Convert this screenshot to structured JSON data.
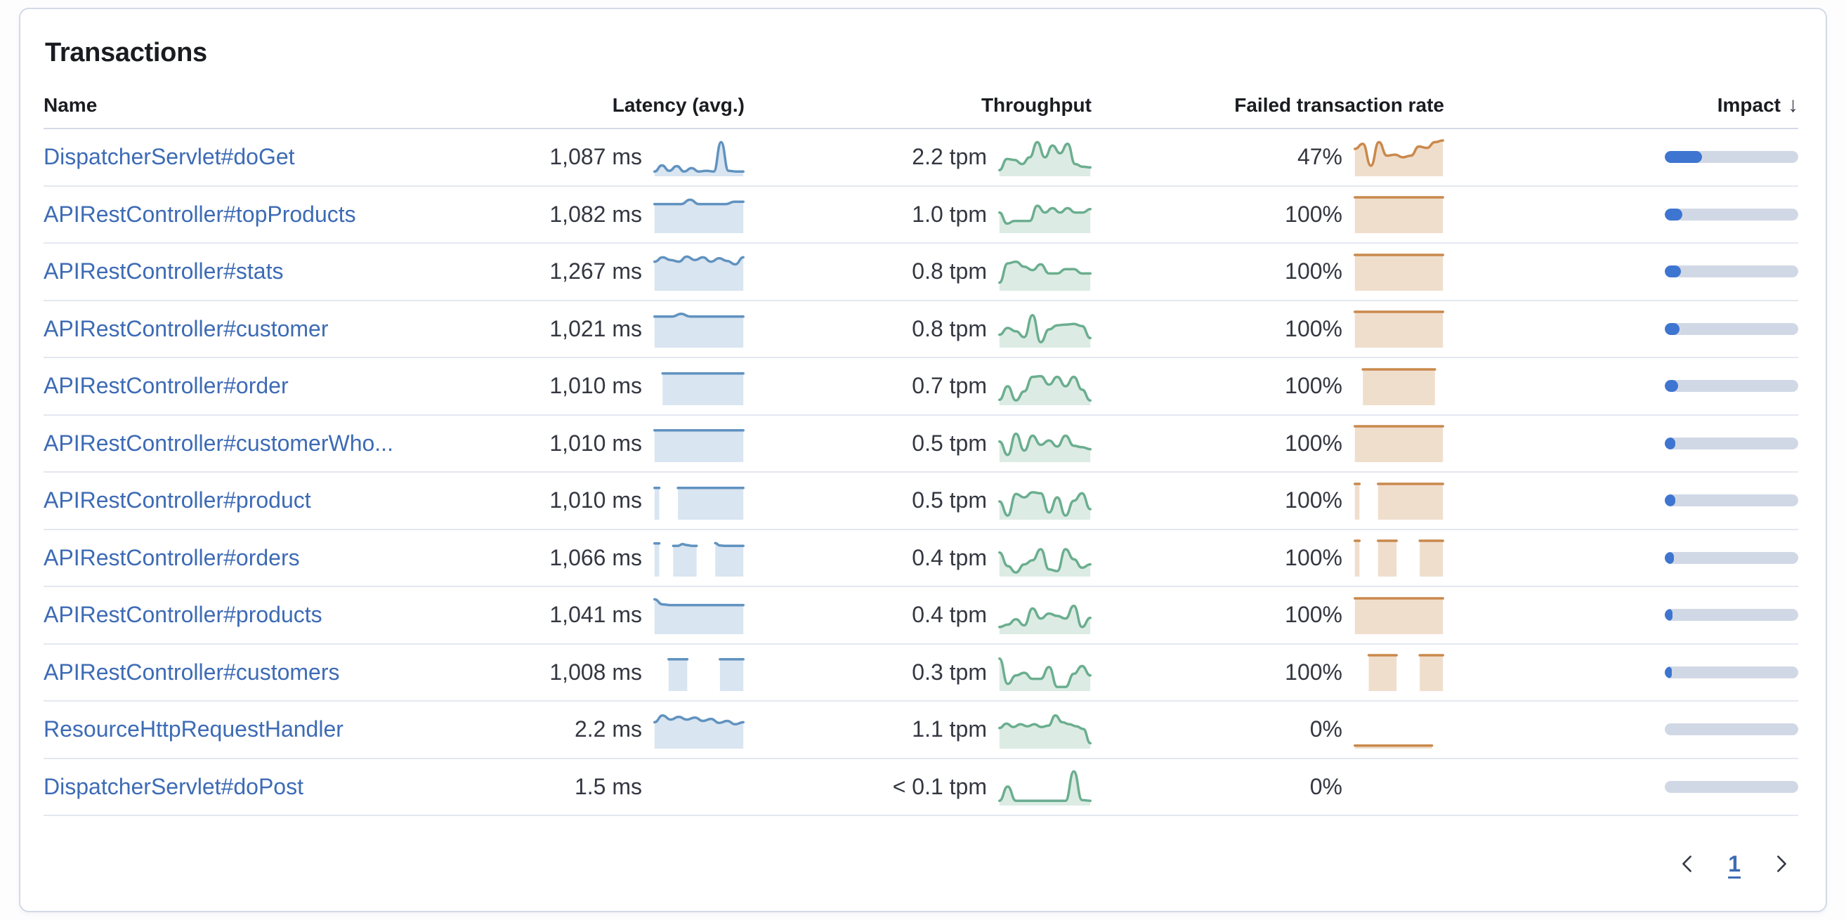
{
  "panel": {
    "title": "Transactions"
  },
  "colors": {
    "link": "#3D6BB5",
    "text": "#343741",
    "title": "#1A1C21",
    "latency_line": "#6092C0",
    "latency_fill": "rgba(96,146,192,0.24)",
    "throughput_line": "#6BAE8F",
    "throughput_fill": "rgba(107,174,143,0.24)",
    "failed_line": "#C9894C",
    "failed_fill": "rgba(201,137,76,0.28)",
    "impact_fill": "#3E75D0",
    "impact_track": "#D1D8E5"
  },
  "table": {
    "columns": [
      {
        "id": "name",
        "label": "Name",
        "align": "left"
      },
      {
        "id": "latency",
        "label": "Latency (avg.)",
        "align": "right"
      },
      {
        "id": "throughput",
        "label": "Throughput",
        "align": "right"
      },
      {
        "id": "failed",
        "label": "Failed transaction rate",
        "align": "right"
      },
      {
        "id": "impact",
        "label": "Impact",
        "align": "right",
        "sorted": "desc",
        "sort_icon": "↓"
      }
    ],
    "rows": [
      {
        "name": "DispatcherServlet#doGet",
        "latency": "1,087 ms",
        "throughput": "2.2 tpm",
        "failed_rate": "47%",
        "impact_pct": 28,
        "latency_spark": [
          0.08,
          0.26,
          0.1,
          0.24,
          0.08,
          0.18,
          0.08,
          0.1,
          0.08,
          0.95,
          0.1,
          0.08,
          0.08
        ],
        "throughput_spark": [
          0.12,
          0.45,
          0.42,
          0.3,
          0.5,
          0.95,
          0.5,
          0.85,
          0.62,
          0.9,
          0.3,
          0.22,
          0.2
        ],
        "failed_spark": [
          0.75,
          0.9,
          0.25,
          0.95,
          0.55,
          0.58,
          0.5,
          0.55,
          0.82,
          0.78,
          0.95,
          1.0
        ]
      },
      {
        "name": "APIRestController#topProducts",
        "latency": "1,082 ms",
        "throughput": "1.0 tpm",
        "failed_rate": "100%",
        "impact_pct": 13,
        "latency_spark": [
          0.8,
          0.8,
          0.8,
          0.8,
          0.93,
          0.8,
          0.8,
          0.8,
          0.8,
          0.87,
          0.87
        ],
        "throughput_spark": [
          0.55,
          0.22,
          0.3,
          0.3,
          0.3,
          0.75,
          0.55,
          0.68,
          0.55,
          0.68,
          0.55,
          0.55,
          0.65
        ],
        "failed_spark": [
          1,
          1,
          1,
          1,
          1,
          1,
          1,
          1
        ]
      },
      {
        "name": "APIRestController#stats",
        "latency": "1,267 ms",
        "throughput": "0.8 tpm",
        "failed_rate": "100%",
        "impact_pct": 12,
        "latency_spark": [
          0.8,
          0.93,
          0.85,
          0.8,
          0.95,
          0.85,
          0.93,
          0.8,
          0.9,
          0.82,
          0.72,
          0.93
        ],
        "throughput_spark": [
          0.18,
          0.75,
          0.8,
          0.65,
          0.55,
          0.72,
          0.45,
          0.45,
          0.58,
          0.58,
          0.45,
          0.45
        ],
        "failed_spark": [
          1,
          1,
          1,
          1,
          1,
          1,
          1,
          1
        ]
      },
      {
        "name": "APIRestController#customer",
        "latency": "1,021 ms",
        "throughput": "0.8 tpm",
        "failed_rate": "100%",
        "impact_pct": 11,
        "latency_spark": [
          0.86,
          0.86,
          0.86,
          0.94,
          0.86,
          0.86,
          0.86,
          0.86,
          0.86,
          0.86,
          0.86
        ],
        "throughput_spark": [
          0.32,
          0.52,
          0.42,
          0.25,
          0.9,
          0.1,
          0.48,
          0.6,
          0.62,
          0.64,
          0.58,
          0.22
        ],
        "failed_spark": [
          1,
          1,
          1,
          1,
          1,
          1,
          1,
          1
        ]
      },
      {
        "name": "APIRestController#order",
        "latency": "1,010 ms",
        "throughput": "0.7 tpm",
        "failed_rate": "100%",
        "impact_pct": 10,
        "latency_spark": [
          null,
          0.88,
          0.88,
          0.88,
          0.88,
          0.88,
          0.88,
          0.88,
          0.88,
          0.88,
          0.88,
          0.88
        ],
        "throughput_spark": [
          0.1,
          0.5,
          0.08,
          0.35,
          0.78,
          0.8,
          0.55,
          0.78,
          0.5,
          0.78,
          0.4,
          0.08
        ],
        "failed_spark": [
          null,
          1,
          1,
          1,
          1,
          1,
          1,
          1,
          1,
          1,
          1,
          null
        ]
      },
      {
        "name": "APIRestController#customerWho...",
        "latency": "1,010 ms",
        "throughput": "0.5 tpm",
        "failed_rate": "100%",
        "impact_pct": 8,
        "latency_spark": [
          0.88,
          0.88,
          0.88,
          0.88,
          0.88,
          0.88,
          0.88,
          0.88,
          0.88,
          0.88
        ],
        "throughput_spark": [
          0.55,
          0.15,
          0.78,
          0.28,
          0.72,
          0.45,
          0.58,
          0.4,
          0.72,
          0.42,
          0.38,
          0.32
        ],
        "failed_spark": [
          1,
          1,
          1,
          1,
          1,
          1,
          1,
          1
        ]
      },
      {
        "name": "APIRestController#product",
        "latency": "1,010 ms",
        "throughput": "0.5 tpm",
        "failed_rate": "100%",
        "impact_pct": 8,
        "latency_spark": [
          0.88,
          0.88,
          null,
          null,
          null,
          0.88,
          0.88,
          0.88,
          0.88,
          0.88,
          0.88,
          0.88,
          0.88,
          0.88,
          0.88,
          0.88,
          0.88,
          0.88,
          0.88,
          0.88
        ],
        "throughput_spark": [
          0.48,
          0.06,
          0.7,
          0.6,
          0.75,
          0.72,
          0.15,
          0.6,
          0.06,
          0.5,
          0.72,
          0.25
        ],
        "failed_spark": [
          1,
          1,
          null,
          null,
          null,
          1,
          1,
          1,
          1,
          1,
          1,
          1,
          1,
          1,
          1,
          1,
          1,
          1,
          1,
          1
        ]
      },
      {
        "name": "APIRestController#orders",
        "latency": "1,066 ms",
        "throughput": "0.4 tpm",
        "failed_rate": "100%",
        "impact_pct": 7,
        "latency_spark": [
          0.92,
          0.92,
          null,
          null,
          0.85,
          0.85,
          0.9,
          0.87,
          0.85,
          0.85,
          null,
          null,
          null,
          0.93,
          0.86,
          0.85,
          0.85,
          0.85,
          0.85,
          0.85
        ],
        "throughput_spark": [
          0.65,
          0.25,
          0.06,
          0.3,
          0.42,
          0.75,
          0.15,
          0.1,
          0.75,
          0.45,
          0.2,
          0.3
        ],
        "failed_spark": [
          1,
          1,
          null,
          null,
          null,
          1,
          1,
          1,
          1,
          1,
          null,
          null,
          null,
          null,
          1,
          1,
          1,
          1,
          1,
          1
        ]
      },
      {
        "name": "APIRestController#products",
        "latency": "1,041 ms",
        "throughput": "0.4 tpm",
        "failed_rate": "100%",
        "impact_pct": 6,
        "latency_spark": [
          0.97,
          0.82,
          0.8,
          0.8,
          0.8,
          0.8,
          0.8,
          0.8,
          0.8,
          0.8,
          0.8,
          0.8
        ],
        "throughput_spark": [
          0.15,
          0.22,
          0.38,
          0.2,
          0.7,
          0.4,
          0.55,
          0.48,
          0.4,
          0.78,
          0.15,
          0.42
        ],
        "failed_spark": [
          1,
          1,
          1,
          1,
          1,
          1,
          1,
          1
        ]
      },
      {
        "name": "APIRestController#customers",
        "latency": "1,008 ms",
        "throughput": "0.3 tpm",
        "failed_rate": "100%",
        "impact_pct": 5,
        "latency_spark": [
          null,
          null,
          null,
          0.88,
          0.88,
          0.88,
          0.88,
          0.88,
          null,
          null,
          null,
          null,
          null,
          null,
          0.88,
          0.88,
          0.88,
          0.88,
          0.88,
          0.88
        ],
        "throughput_spark": [
          0.9,
          0.15,
          0.4,
          0.48,
          0.3,
          0.3,
          0.65,
          0.06,
          0.06,
          0.45,
          0.68,
          0.4
        ],
        "failed_spark": [
          null,
          null,
          null,
          1,
          1,
          1,
          1,
          1,
          1,
          1,
          null,
          null,
          null,
          null,
          1,
          1,
          1,
          1,
          1,
          1
        ]
      },
      {
        "name": "ResourceHttpRequestHandler",
        "latency": "2.2 ms",
        "throughput": "1.1 tpm",
        "failed_rate": "0%",
        "impact_pct": 0,
        "latency_spark": [
          0.72,
          0.92,
          0.8,
          0.88,
          0.8,
          0.86,
          0.76,
          0.82,
          0.7,
          0.76,
          0.66,
          0.72
        ],
        "throughput_spark": [
          0.55,
          0.68,
          0.58,
          0.66,
          0.6,
          0.66,
          0.58,
          0.62,
          0.92,
          0.72,
          0.66,
          0.6,
          0.52,
          0.1
        ],
        "failed_spark": [
          0.03,
          0.03,
          0.03,
          0.03,
          0.03,
          0.03,
          0.03,
          0.03,
          null
        ]
      },
      {
        "name": "DispatcherServlet#doPost",
        "latency": "1.5 ms",
        "throughput": "< 0.1 tpm",
        "failed_rate": "0%",
        "impact_pct": 0,
        "latency_spark": [],
        "throughput_spark": [
          0.08,
          0.5,
          0.08,
          0.08,
          0.08,
          0.08,
          0.08,
          0.08,
          0.08,
          0.95,
          0.1,
          0.08
        ],
        "failed_spark": []
      }
    ]
  },
  "pagination": {
    "current_page": "1"
  }
}
